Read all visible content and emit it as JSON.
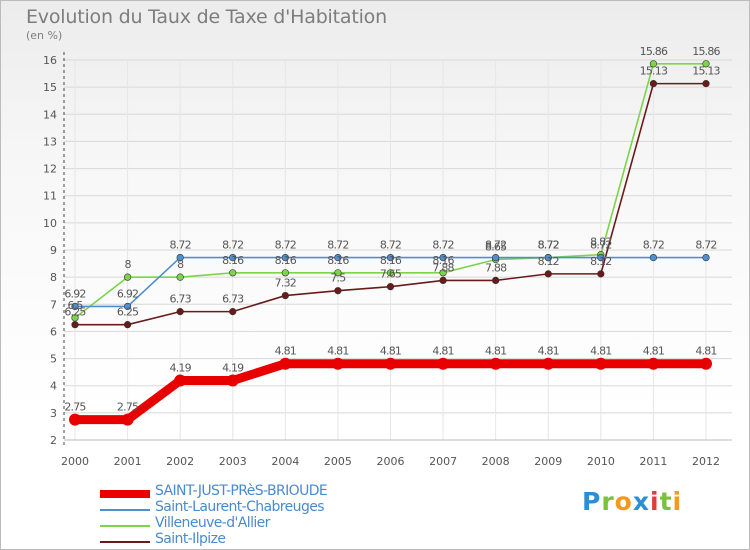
{
  "chart_data": {
    "type": "line",
    "title": "Evolution du Taux de Taxe d'Habitation",
    "unit_label": "(en %)",
    "x": [
      "2000",
      "2001",
      "2002",
      "2003",
      "2004",
      "2005",
      "2006",
      "2007",
      "2008",
      "2009",
      "2010",
      "2011",
      "2012"
    ],
    "ylim": [
      2,
      16
    ],
    "yticks": [
      2,
      3,
      4,
      5,
      6,
      7,
      8,
      9,
      10,
      11,
      12,
      13,
      14,
      15,
      16
    ],
    "grid": true,
    "legend_position": "bottom-left",
    "series": [
      {
        "name": "SAINT-JUST-PRèS-BRIOUDE",
        "color": "#e80000",
        "values": [
          2.75,
          2.75,
          4.19,
          4.19,
          4.81,
          4.81,
          4.81,
          4.81,
          4.81,
          4.81,
          4.81,
          4.81,
          4.81
        ],
        "labels": [
          "2.75",
          "2.75",
          "4.19",
          "4.19",
          "4.81",
          "4.81",
          "4.81",
          "4.81",
          "4.81",
          "4.81",
          "4.81",
          "4.81",
          "4.81"
        ]
      },
      {
        "name": "Saint-Laurent-Chabreuges",
        "color": "#4f8fd0",
        "values": [
          6.92,
          6.92,
          8.72,
          8.72,
          8.72,
          8.72,
          8.72,
          8.72,
          8.72,
          8.72,
          8.72,
          8.72,
          8.72
        ],
        "labels": [
          "6.92",
          "6.92",
          "8.72",
          "8.72",
          "8.72",
          "8.72",
          "8.72",
          "8.72",
          "8.72",
          "8.72",
          "8.72",
          "8.72",
          "8.72"
        ]
      },
      {
        "name": "Villeneuve-d'Allier",
        "color": "#7dd34a",
        "values": [
          6.5,
          8,
          8,
          8.16,
          8.16,
          8.16,
          8.16,
          8.16,
          8.65,
          8.72,
          8.83,
          15.86,
          15.86
        ],
        "labels": [
          "6.5",
          "8",
          "8",
          "8.16",
          "8.16",
          "8.16",
          "8.16",
          "8.16",
          "8.65",
          "8.72",
          "8.83",
          "15.86",
          "15.86"
        ]
      },
      {
        "name": "Saint-Ilpize",
        "color": "#6b1a1a",
        "values": [
          6.25,
          6.25,
          6.73,
          6.73,
          7.32,
          7.5,
          7.65,
          7.88,
          7.88,
          8.12,
          8.12,
          15.13,
          15.13
        ],
        "labels": [
          "6.25",
          "6.25",
          "6.73",
          "6.73",
          "7.32",
          "7.5",
          "7.65",
          "7.88",
          "7.88",
          "8.12",
          "8.12",
          "15.13",
          "15.13"
        ]
      }
    ]
  },
  "logo": {
    "letters": [
      "P",
      "r",
      "o",
      "x",
      "i",
      "t",
      "i"
    ],
    "colors": [
      "#2a8fd6",
      "#7cc040",
      "#f29a1c",
      "#2a8fd6",
      "#e23b3b",
      "#7cc040",
      "#f29a1c"
    ]
  }
}
